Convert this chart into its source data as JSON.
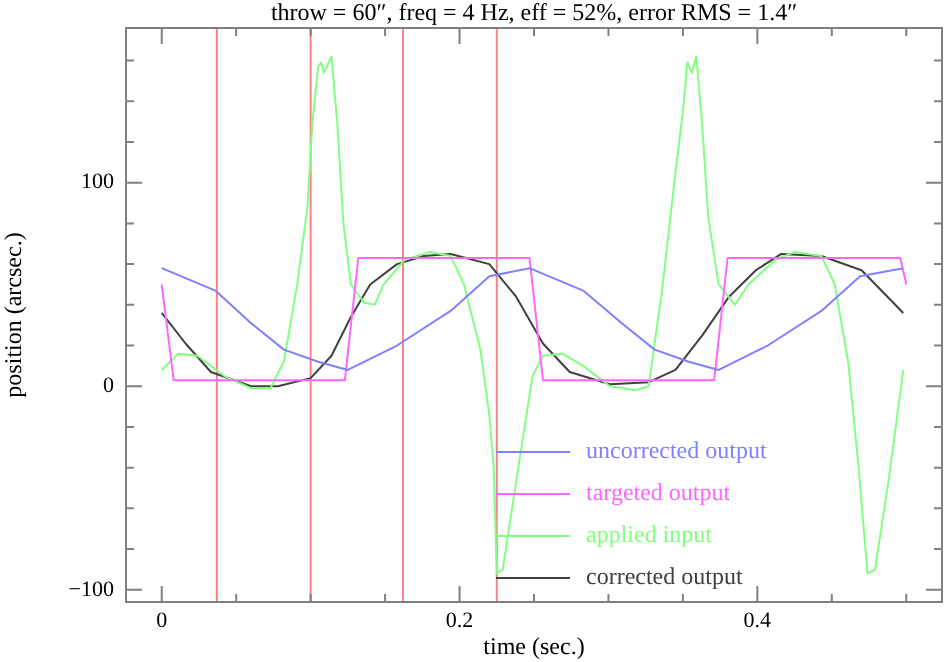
{
  "chart_data": {
    "type": "line",
    "title": "throw = 60″, freq = 4 Hz, eff = 52%, error RMS = 1.4″",
    "xlabel": "time (sec.)",
    "ylabel": "position (arcsec.)",
    "xlim": [
      -0.024,
      0.524
    ],
    "ylim": [
      -106,
      176
    ],
    "xticks": [
      0,
      {
        "value": 0.05,
        "label": null
      },
      {
        "value": 0.1,
        "label": null
      },
      {
        "value": 0.15,
        "label": null
      },
      {
        "value": 0.2,
        "label": "0.2"
      },
      {
        "value": 0.25,
        "label": null
      },
      {
        "value": 0.3,
        "label": null
      },
      {
        "value": 0.35,
        "label": null
      },
      {
        "value": 0.4,
        "label": "0.4"
      },
      {
        "value": 0.45,
        "label": null
      },
      {
        "value": 0.5,
        "label": null
      }
    ],
    "yticks": [
      -100,
      {
        "value": -80,
        "label": null
      },
      {
        "value": -60,
        "label": null
      },
      {
        "value": -40,
        "label": null
      },
      {
        "value": -20,
        "label": null
      },
      0,
      {
        "value": 20,
        "label": null
      },
      {
        "value": 40,
        "label": null
      },
      {
        "value": 60,
        "label": null
      },
      {
        "value": 80,
        "label": null
      },
      100,
      {
        "value": 120,
        "label": null
      },
      {
        "value": 140,
        "label": null
      },
      {
        "value": 160,
        "label": null
      }
    ],
    "grid": false,
    "legend": "bottom right",
    "marker": "none",
    "line_style": "solid",
    "ref_lines": [
      {
        "axis": "x",
        "value": 0.037,
        "color": "#ff8080"
      },
      {
        "axis": "x",
        "value": 0.1,
        "color": "#ff8080"
      },
      {
        "axis": "x",
        "value": 0.162,
        "color": "#ff8080"
      },
      {
        "axis": "x",
        "value": 0.225,
        "color": "#ff8080"
      }
    ],
    "series": [
      {
        "name": "uncorrected output",
        "color": "#8080ff",
        "x": [
          0,
          0.036,
          0.06,
          0.082,
          0.105,
          0.125,
          0.158,
          0.194,
          0.22,
          0.247,
          0.283,
          0.309,
          0.331,
          0.354,
          0.374,
          0.407,
          0.443,
          0.469,
          0.498
        ],
        "values": [
          58,
          47,
          31,
          18,
          12,
          8,
          20,
          37,
          54,
          58,
          47,
          31,
          18,
          12,
          8,
          20,
          37,
          54,
          58
        ]
      },
      {
        "name": "targeted output",
        "color": "#ff66ff",
        "x": [
          0,
          0.008,
          0.123,
          0.132,
          0.247,
          0.256,
          0.371,
          0.38,
          0.496,
          0.5
        ],
        "values": [
          50,
          3,
          3,
          63,
          63,
          3,
          3,
          63,
          63,
          50
        ]
      },
      {
        "name": "applied input",
        "color": "#80ff80",
        "x": [
          0,
          0.011,
          0.024,
          0.042,
          0.06,
          0.073,
          0.082,
          0.091,
          0.098,
          0.101,
          0.105,
          0.107,
          0.109,
          0.114,
          0.118,
          0.122,
          0.127,
          0.136,
          0.143,
          0.149,
          0.163,
          0.18,
          0.194,
          0.203,
          0.214,
          0.22,
          0.223,
          0.225,
          0.229,
          0.238,
          0.249,
          0.256,
          0.269,
          0.283,
          0.301,
          0.318,
          0.327,
          0.336,
          0.345,
          0.35,
          0.353,
          0.356,
          0.359,
          0.363,
          0.367,
          0.374,
          0.385,
          0.394,
          0.412,
          0.425,
          0.443,
          0.452,
          0.461,
          0.468,
          0.474,
          0.479,
          0.488,
          0.498
        ],
        "values": [
          8,
          16,
          15,
          5,
          -1,
          -1,
          12,
          50,
          89,
          128,
          157,
          159,
          154,
          162,
          128,
          80,
          50,
          41,
          40,
          50,
          62,
          66,
          64,
          50,
          18,
          -14,
          -40,
          -92,
          -90,
          -47,
          5,
          15,
          16,
          10,
          0,
          -2,
          0,
          47,
          105,
          135,
          159,
          154,
          162,
          128,
          83,
          50,
          40,
          50,
          62,
          66,
          64,
          50,
          12,
          -40,
          -92,
          -90,
          -47,
          8
        ]
      },
      {
        "name": "corrected output",
        "color": "#404040",
        "x": [
          0,
          0.016,
          0.033,
          0.06,
          0.078,
          0.1,
          0.114,
          0.127,
          0.14,
          0.158,
          0.176,
          0.194,
          0.22,
          0.238,
          0.256,
          0.274,
          0.301,
          0.327,
          0.345,
          0.363,
          0.381,
          0.399,
          0.416,
          0.443,
          0.47,
          0.498
        ],
        "values": [
          36,
          21,
          7,
          0,
          0,
          4,
          15,
          34,
          50,
          60,
          64,
          65,
          60,
          44,
          21,
          7,
          1,
          2,
          8,
          25,
          44,
          57,
          65,
          64,
          57,
          36
        ]
      }
    ]
  }
}
